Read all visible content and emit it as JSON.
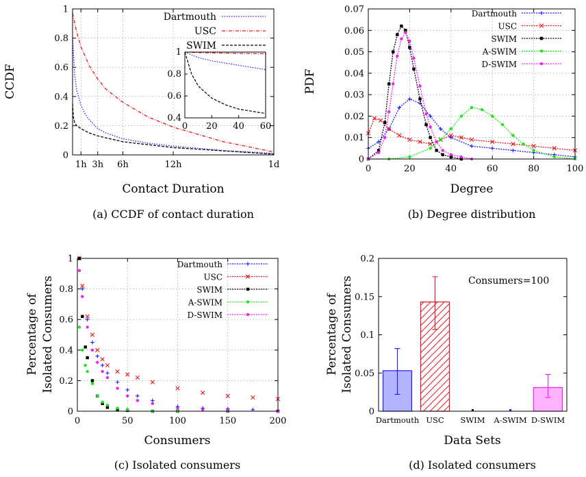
{
  "chart_data": [
    {
      "id": "a",
      "type": "line",
      "caption": "(a) CCDF of contact duration",
      "xlabel": "Contact Duration",
      "ylabel": "CCDF",
      "xlim": [
        0,
        24
      ],
      "ylim": [
        0,
        1
      ],
      "grid": true,
      "legend_position": "top-right",
      "xticks": [
        {
          "v": 1,
          "label": "1h"
        },
        {
          "v": 3,
          "label": "3h"
        },
        {
          "v": 6,
          "label": "6h"
        },
        {
          "v": 12,
          "label": "12h"
        },
        {
          "v": 24,
          "label": "1d"
        }
      ],
      "yticks": [
        0,
        0.2,
        0.4,
        0.6,
        0.8,
        1
      ],
      "series": [
        {
          "name": "Dartmouth",
          "color": "#1a1aff",
          "dash": "1.5 2",
          "x": [
            0,
            0.25,
            0.5,
            1,
            1.5,
            2,
            3,
            4,
            6,
            9,
            12,
            18,
            24
          ],
          "y": [
            0.8,
            0.55,
            0.44,
            0.34,
            0.28,
            0.24,
            0.18,
            0.15,
            0.11,
            0.08,
            0.06,
            0.03,
            0.01
          ]
        },
        {
          "name": "USC",
          "color": "#e8161a",
          "dash": "5 2 1 2",
          "x": [
            0,
            0.5,
            1,
            2,
            3,
            4,
            6,
            9,
            12,
            18,
            24
          ],
          "y": [
            0.97,
            0.84,
            0.74,
            0.61,
            0.52,
            0.45,
            0.36,
            0.26,
            0.19,
            0.09,
            0.02
          ]
        },
        {
          "name": "SWIM",
          "color": "#000000",
          "dash": "4 2",
          "x": [
            0,
            0.1,
            0.25,
            0.5,
            1,
            2,
            3,
            6,
            12,
            24
          ],
          "y": [
            0.35,
            0.26,
            0.22,
            0.2,
            0.18,
            0.15,
            0.13,
            0.09,
            0.05,
            0.005
          ]
        }
      ],
      "inset": {
        "xlim": [
          0,
          60
        ],
        "ylim": [
          0.4,
          1
        ],
        "xticks": [
          0,
          20,
          40,
          60
        ],
        "yticks": [
          0.4,
          0.6,
          0.8,
          1
        ],
        "series": [
          {
            "name": "Dartmouth",
            "x": [
              0,
              10,
              20,
              30,
              40,
              50,
              60
            ],
            "y": [
              1,
              0.95,
              0.92,
              0.9,
              0.88,
              0.86,
              0.84
            ]
          },
          {
            "name": "USC",
            "x": [
              0,
              10,
              20,
              30,
              40,
              50,
              60
            ],
            "y": [
              1,
              0.995,
              0.993,
              0.99,
              0.988,
              0.986,
              0.985
            ]
          },
          {
            "name": "SWIM",
            "x": [
              0,
              5,
              10,
              20,
              30,
              40,
              50,
              60
            ],
            "y": [
              1,
              0.8,
              0.69,
              0.58,
              0.52,
              0.48,
              0.46,
              0.44
            ]
          }
        ]
      }
    },
    {
      "id": "b",
      "type": "line",
      "caption": "(b) Degree distribution",
      "xlabel": "Degree",
      "ylabel": "PDF",
      "xlim": [
        0,
        100
      ],
      "ylim": [
        0,
        0.07
      ],
      "grid": true,
      "legend_position": "top-right",
      "xticks": [
        0,
        20,
        40,
        60,
        80,
        100
      ],
      "yticks": [
        0,
        0.01,
        0.02,
        0.03,
        0.04,
        0.05,
        0.06,
        0.07
      ],
      "series": [
        {
          "name": "Dartmouth",
          "color": "#1a1aff",
          "marker": "plus",
          "x": [
            0,
            5,
            10,
            15,
            20,
            25,
            30,
            35,
            40,
            50,
            60,
            70,
            80,
            90,
            100
          ],
          "y": [
            0.005,
            0.008,
            0.014,
            0.024,
            0.028,
            0.026,
            0.02,
            0.014,
            0.01,
            0.006,
            0.005,
            0.004,
            0.003,
            0.002,
            0.001
          ]
        },
        {
          "name": "USC",
          "color": "#e8161a",
          "marker": "cross",
          "x": [
            0,
            3,
            6,
            10,
            15,
            20,
            25,
            30,
            35,
            40,
            45,
            50,
            60,
            70,
            80,
            90,
            100
          ],
          "y": [
            0.012,
            0.019,
            0.018,
            0.014,
            0.011,
            0.009,
            0.008,
            0.007,
            0.009,
            0.011,
            0.01,
            0.009,
            0.008,
            0.007,
            0.006,
            0.005,
            0.004
          ]
        },
        {
          "name": "SWIM",
          "color": "#000000",
          "marker": "square",
          "x": [
            0,
            5,
            8,
            10,
            12,
            14,
            16,
            18,
            20,
            22,
            25,
            28,
            30,
            33,
            36,
            40,
            45
          ],
          "y": [
            0,
            0.004,
            0.017,
            0.035,
            0.05,
            0.058,
            0.062,
            0.06,
            0.052,
            0.042,
            0.028,
            0.016,
            0.01,
            0.004,
            0.002,
            0.001,
            0
          ]
        },
        {
          "name": "A-SWIM",
          "color": "#18e818",
          "marker": "dot",
          "x": [
            0,
            10,
            20,
            30,
            35,
            40,
            45,
            50,
            55,
            60,
            65,
            70,
            75,
            80,
            90,
            100
          ],
          "y": [
            0,
            0,
            0.001,
            0.005,
            0.009,
            0.014,
            0.02,
            0.024,
            0.023,
            0.02,
            0.016,
            0.011,
            0.007,
            0.004,
            0.001,
            0
          ]
        },
        {
          "name": "D-SWIM",
          "color": "#ee22ee",
          "marker": "dot",
          "x": [
            0,
            5,
            8,
            10,
            12,
            14,
            16,
            18,
            20,
            22,
            25,
            28,
            30,
            33,
            36,
            40,
            45,
            50
          ],
          "y": [
            0,
            0.003,
            0.01,
            0.022,
            0.035,
            0.048,
            0.056,
            0.059,
            0.055,
            0.047,
            0.034,
            0.021,
            0.015,
            0.008,
            0.004,
            0.002,
            0.001,
            0
          ]
        }
      ]
    },
    {
      "id": "c",
      "type": "scatter",
      "caption": "(c) Isolated consumers",
      "xlabel": "Consumers",
      "ylabel_lines": [
        "Percentage of",
        "Isolated Consumers"
      ],
      "xlim": [
        0,
        200
      ],
      "ylim": [
        0,
        1
      ],
      "grid": true,
      "legend_position": "top-right",
      "xticks": [
        0,
        50,
        100,
        150,
        200
      ],
      "yticks": [
        0,
        0.2,
        0.4,
        0.6,
        0.8,
        1
      ],
      "series": [
        {
          "name": "Dartmouth",
          "color": "#1a1aff",
          "marker": "plus",
          "x": [
            2,
            5,
            10,
            15,
            20,
            25,
            30,
            40,
            50,
            60,
            75,
            100,
            125,
            150,
            175,
            200
          ],
          "y": [
            1,
            0.8,
            0.6,
            0.45,
            0.36,
            0.3,
            0.25,
            0.19,
            0.14,
            0.1,
            0.07,
            0.03,
            0.02,
            0.015,
            0.01,
            0.005
          ]
        },
        {
          "name": "USC",
          "color": "#e8161a",
          "marker": "cross",
          "x": [
            2,
            5,
            10,
            15,
            20,
            25,
            30,
            40,
            50,
            60,
            75,
            100,
            125,
            150,
            175,
            200
          ],
          "y": [
            1,
            0.82,
            0.62,
            0.5,
            0.4,
            0.34,
            0.3,
            0.26,
            0.24,
            0.22,
            0.19,
            0.15,
            0.12,
            0.1,
            0.09,
            0.08
          ]
        },
        {
          "name": "SWIM",
          "color": "#000000",
          "marker": "square",
          "x": [
            2,
            5,
            8,
            10,
            15,
            20,
            25,
            30,
            40,
            50,
            75,
            100,
            150,
            200
          ],
          "y": [
            1,
            0.62,
            0.42,
            0.35,
            0.2,
            0.1,
            0.05,
            0.025,
            0.01,
            0.005,
            0,
            0,
            0,
            0
          ]
        },
        {
          "name": "A-SWIM",
          "color": "#18e818",
          "marker": "dot",
          "x": [
            2,
            5,
            8,
            10,
            15,
            20,
            25,
            30,
            40,
            50,
            75,
            100,
            150,
            200
          ],
          "y": [
            0.55,
            0.4,
            0.3,
            0.26,
            0.18,
            0.1,
            0.06,
            0.04,
            0.02,
            0.01,
            0,
            0,
            0,
            0
          ]
        },
        {
          "name": "D-SWIM",
          "color": "#ee22ee",
          "marker": "dot",
          "x": [
            2,
            5,
            10,
            15,
            20,
            25,
            30,
            40,
            50,
            60,
            75,
            100,
            125,
            150,
            200
          ],
          "y": [
            0.92,
            0.75,
            0.55,
            0.4,
            0.32,
            0.26,
            0.22,
            0.15,
            0.1,
            0.07,
            0.05,
            0.02,
            0.01,
            0.005,
            0
          ]
        }
      ]
    },
    {
      "id": "d",
      "type": "bar",
      "caption": "(d) Isolated consumers",
      "xlabel": "Data Sets",
      "ylabel_lines": [
        "Percentage of",
        "Isolated Consumers"
      ],
      "annotation": "Consumers=100",
      "ylim": [
        0,
        0.2
      ],
      "yticks": [
        0,
        0.05,
        0.1,
        0.15,
        0.2
      ],
      "categories": [
        "Dartmouth",
        "USC",
        "SWIM",
        "A-SWIM",
        "D-SWIM"
      ],
      "values": [
        0.053,
        0.143,
        0,
        0,
        0.031
      ],
      "errors": [
        [
          0.022,
          0.082
        ],
        [
          0.107,
          0.176
        ],
        [
          0,
          0
        ],
        [
          0,
          0
        ],
        [
          0.018,
          0.048
        ]
      ],
      "fills": [
        "#b3b3ff",
        "hatch-red",
        "#000000",
        "#8080ff",
        "#ffb3ff"
      ],
      "edges": [
        "#1a1aff",
        "#e8161a",
        "#000000",
        "#1a1aff",
        "#ee22ee"
      ]
    }
  ]
}
